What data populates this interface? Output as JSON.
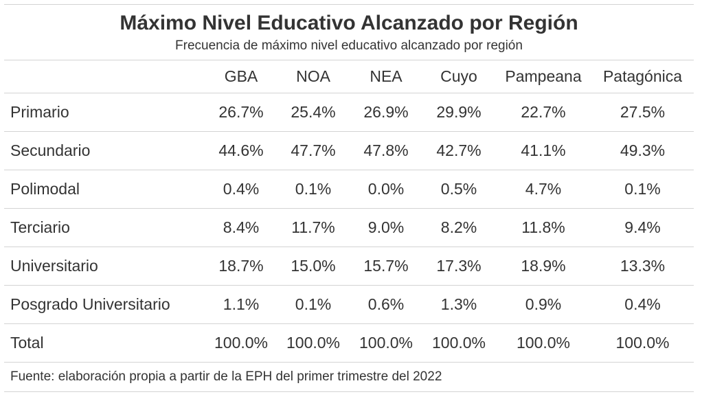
{
  "title": "Máximo Nivel Educativo Alcanzado por Región",
  "subtitle": "Frecuencia de máximo nivel educativo alcanzado por región",
  "columns": [
    "",
    "GBA",
    "NOA",
    "NEA",
    "Cuyo",
    "Pampeana",
    "Patagónica"
  ],
  "rows": [
    {
      "label": "Primario",
      "values": [
        "26.7%",
        "25.4%",
        "26.9%",
        "29.9%",
        "22.7%",
        "27.5%"
      ]
    },
    {
      "label": "Secundario",
      "values": [
        "44.6%",
        "47.7%",
        "47.8%",
        "42.7%",
        "41.1%",
        "49.3%"
      ]
    },
    {
      "label": "Polimodal",
      "values": [
        "0.4%",
        "0.1%",
        "0.0%",
        "0.5%",
        "4.7%",
        "0.1%"
      ]
    },
    {
      "label": "Terciario",
      "values": [
        "8.4%",
        "11.7%",
        "9.0%",
        "8.2%",
        "11.8%",
        "9.4%"
      ]
    },
    {
      "label": "Universitario",
      "values": [
        "18.7%",
        "15.0%",
        "15.7%",
        "17.3%",
        "18.9%",
        "13.3%"
      ]
    },
    {
      "label": "Posgrado Universitario",
      "values": [
        "1.1%",
        "0.1%",
        "0.6%",
        "1.3%",
        "0.9%",
        "0.4%"
      ]
    },
    {
      "label": "Total",
      "values": [
        "100.0%",
        "100.0%",
        "100.0%",
        "100.0%",
        "100.0%",
        "100.0%"
      ]
    }
  ],
  "source_note": "Fuente: elaboración propia a partir de la EPH del primer trimestre del 2022"
}
